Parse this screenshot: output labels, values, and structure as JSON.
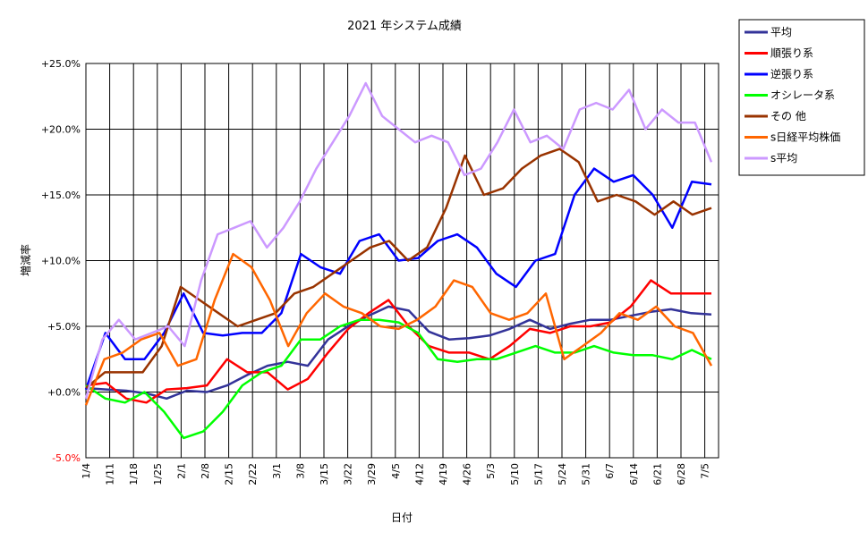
{
  "chart_data": {
    "type": "line",
    "title": "2021 年システム成績",
    "xlabel": "日付",
    "ylabel": "増減率",
    "ylim": [
      -5,
      25
    ],
    "yticks": [
      {
        "value": 25,
        "label": "+25.0%"
      },
      {
        "value": 20,
        "label": "+20.0%"
      },
      {
        "value": 15,
        "label": "+15.0%"
      },
      {
        "value": 10,
        "label": "+10.0%"
      },
      {
        "value": 5,
        "label": "+5.0%"
      },
      {
        "value": 0,
        "label": "+0.0%"
      },
      {
        "value": -5,
        "label": "-5.0%"
      }
    ],
    "x_tick_labels": [
      "1/4",
      "1/11",
      "1/18",
      "1/25",
      "2/1",
      "2/8",
      "2/15",
      "2/22",
      "3/1",
      "3/8",
      "3/15",
      "3/22",
      "3/29",
      "4/5",
      "4/12",
      "4/19",
      "4/26",
      "5/3",
      "5/10",
      "5/17",
      "5/24",
      "5/31",
      "6/7",
      "6/14",
      "6/21",
      "6/28",
      "7/5"
    ],
    "grid": true,
    "legend_position": "right",
    "series": [
      {
        "name": "平均",
        "color": "#333399",
        "values": [
          0.3,
          0.2,
          0.1,
          -0.1,
          -0.5,
          0.1,
          0.0,
          0.5,
          1.3,
          2.0,
          2.3,
          2.0,
          4.0,
          5.0,
          5.8,
          6.5,
          6.2,
          4.6,
          4.0,
          4.1,
          4.3,
          4.8,
          5.5,
          4.8,
          5.2,
          5.5,
          5.5,
          5.8,
          6.1,
          6.3,
          6.0,
          5.9
        ]
      },
      {
        "name": "順張り系",
        "color": "#ff0000",
        "values": [
          0.5,
          0.7,
          -0.5,
          -0.8,
          0.2,
          0.3,
          0.5,
          2.5,
          1.5,
          1.5,
          0.2,
          1.0,
          3.0,
          4.8,
          6.0,
          7.0,
          5.0,
          3.5,
          3.0,
          3.0,
          2.5,
          3.5,
          4.8,
          4.5,
          5.0,
          5.0,
          5.3,
          6.5,
          8.5,
          7.5,
          7.5,
          7.5
        ]
      },
      {
        "name": "逆張り系",
        "color": "#0000ff",
        "values": [
          0.2,
          4.5,
          2.5,
          2.5,
          4.5,
          7.5,
          4.5,
          4.3,
          4.5,
          4.5,
          6.0,
          10.5,
          9.5,
          9.0,
          11.5,
          12.0,
          10.0,
          10.2,
          11.5,
          12.0,
          11.0,
          9.0,
          8.0,
          10.0,
          10.5,
          15.0,
          17.0,
          16.0,
          16.5,
          15.0,
          12.5,
          16.0,
          15.8
        ]
      },
      {
        "name": "オシレータ系",
        "color": "#00ff00",
        "values": [
          0.5,
          -0.5,
          -0.8,
          0.0,
          -1.5,
          -3.5,
          -3.0,
          -1.5,
          0.5,
          1.5,
          2.0,
          4.0,
          4.0,
          5.0,
          5.5,
          5.5,
          5.3,
          4.5,
          2.5,
          2.3,
          2.5,
          2.5,
          3.0,
          3.5,
          3.0,
          3.0,
          3.5,
          3.0,
          2.8,
          2.8,
          2.5,
          3.2,
          2.5
        ]
      },
      {
        "name": "その 他",
        "color": "#993300",
        "values": [
          0.3,
          1.5,
          1.5,
          1.5,
          3.5,
          8.0,
          7.0,
          6.0,
          5.0,
          5.5,
          6.0,
          7.5,
          8.0,
          9.0,
          10.0,
          11.0,
          11.5,
          10.0,
          11.0,
          14.0,
          18.0,
          15.0,
          15.5,
          17.0,
          18.0,
          18.5,
          17.5,
          14.5,
          15.0,
          14.5,
          13.5,
          14.5,
          13.5,
          14.0
        ]
      },
      {
        "name": "s日経平均株価",
        "color": "#ff6600",
        "values": [
          -1.0,
          2.5,
          3.0,
          4.0,
          4.5,
          2.0,
          2.5,
          7.0,
          10.5,
          9.5,
          7.0,
          3.5,
          6.0,
          7.5,
          6.5,
          6.0,
          5.0,
          4.8,
          5.5,
          6.5,
          8.5,
          8.0,
          6.0,
          5.5,
          6.0,
          7.5,
          2.5,
          3.5,
          4.5,
          6.0,
          5.5,
          6.5,
          5.0,
          4.5,
          2.0
        ]
      },
      {
        "name": "s平均",
        "color": "#cc99ff",
        "values": [
          -0.5,
          4.0,
          5.5,
          4.0,
          4.5,
          5.0,
          3.5,
          8.5,
          12.0,
          12.5,
          13.0,
          11.0,
          12.5,
          14.5,
          17.0,
          19.0,
          21.0,
          23.5,
          21.0,
          20.0,
          19.0,
          19.5,
          19.0,
          16.5,
          17.0,
          19.0,
          21.5,
          19.0,
          19.5,
          18.5,
          21.5,
          22.0,
          21.5,
          23.0,
          20.0,
          21.5,
          20.5,
          20.5,
          17.5
        ]
      }
    ]
  }
}
